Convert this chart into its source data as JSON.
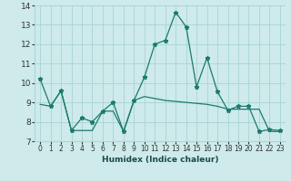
{
  "xlabel": "Humidex (Indice chaleur)",
  "x": [
    0,
    1,
    2,
    3,
    4,
    5,
    6,
    7,
    8,
    9,
    10,
    11,
    12,
    13,
    14,
    15,
    16,
    17,
    18,
    19,
    20,
    21,
    22,
    23
  ],
  "line1": [
    10.2,
    8.8,
    9.6,
    7.55,
    8.2,
    8.0,
    8.55,
    9.0,
    7.5,
    9.1,
    10.3,
    12.0,
    12.2,
    13.65,
    12.9,
    9.8,
    11.3,
    9.55,
    8.6,
    8.8,
    8.8,
    7.5,
    7.6,
    7.55
  ],
  "line2": [
    8.9,
    8.8,
    9.6,
    7.55,
    7.55,
    7.55,
    8.55,
    8.55,
    7.5,
    9.1,
    9.3,
    9.2,
    9.1,
    9.05,
    9.0,
    8.95,
    8.9,
    8.8,
    8.65,
    8.65,
    8.65,
    8.65,
    7.5,
    7.5
  ],
  "line_color": "#1a7a6e",
  "bg_color": "#ceeaea",
  "grid_color": "#a8d4d4",
  "ylim": [
    7,
    14
  ],
  "yticks": [
    7,
    8,
    9,
    10,
    11,
    12,
    13,
    14
  ],
  "xlim": [
    -0.5,
    23.5
  ]
}
